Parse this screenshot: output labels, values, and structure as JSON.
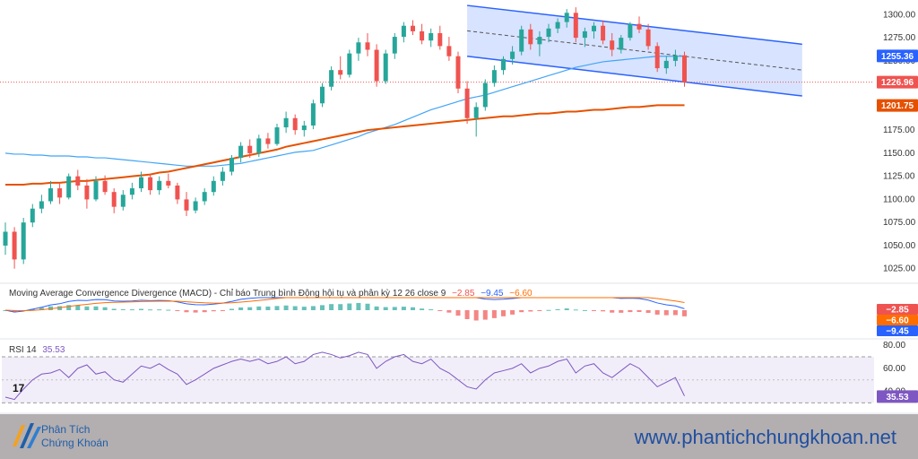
{
  "chart_data": [
    {
      "type": "candlestick",
      "pane": "price",
      "y_ticks": [
        "1300.00",
        "1275.00",
        "1250.00",
        "1225.00",
        "1200.00",
        "1175.00",
        "1150.00",
        "1125.00",
        "1100.00",
        "1075.00",
        "1050.00",
        "1025.00"
      ],
      "ylim": [
        1015,
        1312
      ],
      "candles": [
        [
          1050,
          1075,
          1040,
          1065
        ],
        [
          1065,
          1070,
          1025,
          1035
        ],
        [
          1035,
          1080,
          1030,
          1075
        ],
        [
          1075,
          1095,
          1070,
          1090
        ],
        [
          1090,
          1105,
          1085,
          1098
        ],
        [
          1098,
          1120,
          1095,
          1112
        ],
        [
          1112,
          1118,
          1095,
          1102
        ],
        [
          1102,
          1128,
          1100,
          1125
        ],
        [
          1125,
          1132,
          1110,
          1115
        ],
        [
          1115,
          1122,
          1090,
          1100
        ],
        [
          1100,
          1125,
          1098,
          1120
        ],
        [
          1120,
          1126,
          1105,
          1108
        ],
        [
          1108,
          1112,
          1085,
          1092
        ],
        [
          1092,
          1110,
          1088,
          1105
        ],
        [
          1105,
          1118,
          1100,
          1112
        ],
        [
          1112,
          1130,
          1108,
          1124
        ],
        [
          1124,
          1128,
          1105,
          1110
        ],
        [
          1110,
          1125,
          1105,
          1120
        ],
        [
          1120,
          1128,
          1112,
          1115
        ],
        [
          1115,
          1118,
          1095,
          1100
        ],
        [
          1100,
          1108,
          1082,
          1088
        ],
        [
          1088,
          1102,
          1085,
          1098
        ],
        [
          1098,
          1112,
          1094,
          1108
        ],
        [
          1108,
          1125,
          1104,
          1120
        ],
        [
          1120,
          1135,
          1115,
          1130
        ],
        [
          1130,
          1148,
          1126,
          1145
        ],
        [
          1145,
          1162,
          1140,
          1158
        ],
        [
          1158,
          1165,
          1145,
          1150
        ],
        [
          1150,
          1170,
          1146,
          1166
        ],
        [
          1166,
          1172,
          1155,
          1160
        ],
        [
          1160,
          1182,
          1158,
          1178
        ],
        [
          1178,
          1195,
          1172,
          1188
        ],
        [
          1188,
          1192,
          1170,
          1175
        ],
        [
          1175,
          1185,
          1168,
          1180
        ],
        [
          1180,
          1208,
          1176,
          1204
        ],
        [
          1204,
          1226,
          1200,
          1222
        ],
        [
          1222,
          1244,
          1218,
          1240
        ],
        [
          1240,
          1255,
          1230,
          1235
        ],
        [
          1235,
          1262,
          1232,
          1258
        ],
        [
          1258,
          1275,
          1250,
          1270
        ],
        [
          1270,
          1280,
          1255,
          1262
        ],
        [
          1262,
          1268,
          1222,
          1228
        ],
        [
          1228,
          1262,
          1225,
          1258
        ],
        [
          1258,
          1280,
          1252,
          1276
        ],
        [
          1276,
          1292,
          1270,
          1288
        ],
        [
          1288,
          1294,
          1278,
          1282
        ],
        [
          1282,
          1290,
          1268,
          1272
        ],
        [
          1272,
          1285,
          1265,
          1280
        ],
        [
          1280,
          1288,
          1262,
          1266
        ],
        [
          1266,
          1276,
          1250,
          1255
        ],
        [
          1255,
          1260,
          1215,
          1220
        ],
        [
          1220,
          1228,
          1182,
          1188
        ],
        [
          1188,
          1205,
          1168,
          1200
        ],
        [
          1200,
          1230,
          1196,
          1226
        ],
        [
          1226,
          1245,
          1222,
          1240
        ],
        [
          1240,
          1255,
          1235,
          1252
        ],
        [
          1252,
          1266,
          1246,
          1260
        ],
        [
          1260,
          1288,
          1256,
          1284
        ],
        [
          1284,
          1290,
          1262,
          1268
        ],
        [
          1268,
          1282,
          1255,
          1276
        ],
        [
          1276,
          1290,
          1270,
          1285
        ],
        [
          1285,
          1296,
          1280,
          1292
        ],
        [
          1292,
          1306,
          1286,
          1302
        ],
        [
          1302,
          1308,
          1270,
          1275
        ],
        [
          1275,
          1286,
          1265,
          1282
        ],
        [
          1282,
          1292,
          1274,
          1288
        ],
        [
          1288,
          1294,
          1268,
          1272
        ],
        [
          1272,
          1280,
          1255,
          1262
        ],
        [
          1262,
          1278,
          1258,
          1275
        ],
        [
          1275,
          1292,
          1272,
          1290
        ],
        [
          1290,
          1298,
          1280,
          1284
        ],
        [
          1284,
          1290,
          1262,
          1266
        ],
        [
          1266,
          1270,
          1238,
          1242
        ],
        [
          1242,
          1255,
          1236,
          1250
        ],
        [
          1250,
          1262,
          1244,
          1256
        ],
        [
          1256,
          1260,
          1222,
          1227
        ]
      ],
      "ma200": [
        1116,
        1116,
        1116,
        1117,
        1117,
        1118,
        1118,
        1119,
        1120,
        1120,
        1121,
        1122,
        1123,
        1124,
        1125,
        1126,
        1127,
        1129,
        1130,
        1132,
        1134,
        1136,
        1138,
        1140,
        1142,
        1144,
        1146,
        1148,
        1150,
        1152,
        1154,
        1157,
        1159,
        1161,
        1163,
        1165,
        1167,
        1169,
        1171,
        1173,
        1175,
        1176,
        1177,
        1178,
        1179,
        1180,
        1181,
        1182,
        1183,
        1184,
        1185,
        1186,
        1187,
        1188,
        1189,
        1190,
        1190,
        1191,
        1192,
        1193,
        1193,
        1194,
        1195,
        1195,
        1196,
        1197,
        1197,
        1198,
        1199,
        1200,
        1200,
        1201,
        1202,
        1202,
        1202,
        1202
      ],
      "ma50": [
        1150,
        1149,
        1149,
        1148,
        1148,
        1147,
        1147,
        1147,
        1146,
        1146,
        1145,
        1145,
        1144,
        1143,
        1142,
        1141,
        1140,
        1139,
        1138,
        1137,
        1136,
        1136,
        1136,
        1136,
        1137,
        1138,
        1139,
        1141,
        1143,
        1145,
        1147,
        1149,
        1151,
        1152,
        1153,
        1156,
        1159,
        1162,
        1165,
        1168,
        1172,
        1175,
        1178,
        1181,
        1185,
        1189,
        1193,
        1197,
        1200,
        1203,
        1206,
        1209,
        1211,
        1213,
        1216,
        1219,
        1222,
        1225,
        1228,
        1231,
        1234,
        1237,
        1240,
        1243,
        1245,
        1247,
        1249,
        1250,
        1251,
        1252,
        1253,
        1254,
        1255,
        1255,
        1255,
        1255
      ],
      "channel": {
        "start_index": 51,
        "end_index": 75,
        "extend_to_index": 88,
        "upper_start": 1310,
        "upper_end": 1268,
        "lower_start": 1255,
        "lower_end": 1212
      },
      "price_badges": [
        {
          "label": "1255.36",
          "value": 1255.36,
          "color": "#2962ff"
        },
        {
          "label": "1226.96",
          "value": 1226.96,
          "color": "#ef5350"
        },
        {
          "label": "1201.75",
          "value": 1201.75,
          "color": "#e65100"
        }
      ],
      "current_price_line": 1226.96
    },
    {
      "type": "bar",
      "pane": "macd",
      "legend": "Moving Average Convergence Divergence (MACD) - Chỉ báo Trung bình Động hội tụ và phân kỳ 12 26 close 9",
      "legend_values": [
        {
          "label": "−2.85",
          "color": "#ef5350"
        },
        {
          "label": "−9.45",
          "color": "#2962ff"
        },
        {
          "label": "−6.60",
          "color": "#ff6d00"
        }
      ],
      "badges": [
        {
          "label": "−2.85",
          "color": "#ef5350"
        },
        {
          "label": "−6.60",
          "color": "#ff6d00"
        },
        {
          "label": "−9.45",
          "color": "#2962ff"
        }
      ]
    },
    {
      "type": "line",
      "pane": "rsi",
      "legend_title": "RSI 14",
      "legend_value": "35.53",
      "y_ticks": [
        "80.00",
        "60.00",
        "40.00"
      ],
      "ylim": [
        28,
        84
      ],
      "band": [
        30,
        70
      ],
      "values": [
        35,
        33,
        42,
        50,
        55,
        56,
        59,
        52,
        60,
        63,
        55,
        57,
        50,
        48,
        55,
        62,
        60,
        64,
        59,
        55,
        46,
        50,
        55,
        60,
        63,
        66,
        68,
        66,
        68,
        64,
        66,
        70,
        64,
        66,
        72,
        74,
        72,
        69,
        71,
        74,
        72,
        60,
        66,
        70,
        72,
        66,
        64,
        68,
        60,
        56,
        50,
        44,
        42,
        50,
        56,
        58,
        60,
        64,
        56,
        60,
        62,
        66,
        68,
        56,
        62,
        64,
        56,
        52,
        58,
        64,
        60,
        52,
        44,
        48,
        52,
        36
      ],
      "value_badge": "35.53"
    }
  ],
  "watermark": {
    "brand": "TradingView",
    "glyph": "17"
  },
  "footer": {
    "logo_line1": "Phân Tích",
    "logo_line2": "Chứng Khoán",
    "url": "www.phantichchungkhoan.net"
  }
}
